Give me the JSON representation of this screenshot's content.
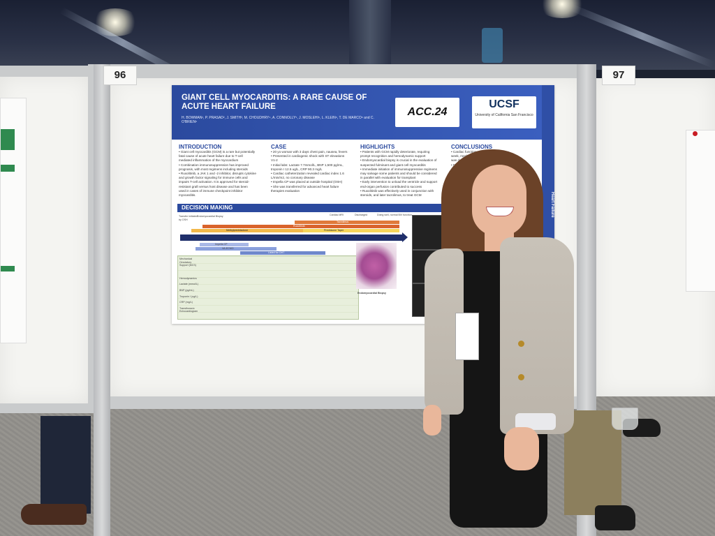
{
  "booths": [
    {
      "number": "96"
    },
    {
      "number": "97"
    }
  ],
  "poster": {
    "title": "GIANT CELL MYOCARDITIS: A RARE CAUSE OF ACUTE HEART FAILURE",
    "authors": "H. BOWMAN¹, P. PRASAD², J. SMITH³, M. CHOUDHRY⁴, A. CONNOLLY⁵, J. MOSLEHI⁶, L. KLEIN⁶, T. DE MARCO⁶ and C. O'BRIEN⁶",
    "acc_logo": "ACC.24",
    "ucsf_logo": "UCSF",
    "ucsf_sub": "University of California San Francisco",
    "side_banner": "Heart Failure",
    "sections": {
      "introduction": {
        "heading": "INTRODUCTION",
        "lines": [
          "• Giant cell myocarditis (GCM) is a rare but potentially",
          "fatal cause of acute heart failure due to T-cell",
          "mediated inflammation of the myocardium",
          "• Combination immunosuppression has improved",
          "prognosis, with most regimens including steroids",
          "• Ruxolitinib, a JAK 1 and -2 inhibitor, disrupts cytokine",
          "and growth factor signaling for immune cells and",
          "impairs T-cell activation. It is approved for steroid-",
          "resistant graft versus host disease and has been",
          "used in cases of immune checkpoint inhibitor",
          "myocarditis."
        ]
      },
      "case": {
        "heading": "CASE",
        "lines": [
          "• 20 yo woman with 3 days chest pain, nausea, fevers",
          "• Presented in cardiogenic shock with ST elevations",
          "V1-2",
          "• Initial labs: Lactate 7.7mmol/L, BNP 1,500 pg/mL,",
          "troponin I 12.5 ug/L, CRP 90.3 mg/L",
          "• Cardiac catheterization revealed cardiac index 1.6",
          "L/min/m2, no coronary disease",
          "• Impella CP was placed at outside hospital (OSH)",
          "• She was transferred for advanced heart failure",
          "therapies evaluation"
        ]
      },
      "highlights": {
        "heading": "HIGHLIGHTS",
        "lines": [
          "• Patients with GCM rapidly deteriorate, requiring",
          "prompt recognition and hemodynamic support",
          "• Endomyocardial biopsy is crucial in the evaluation of",
          "suspected fulminant and giant cell myocarditis",
          "• Immediate initiation of immunosuppressive regimens",
          "may salvage some patients and should be considered",
          "in parallel with evaluation for transplant",
          "• Early intervention to unload the ventricle and support",
          "end-organ perfusion contributed to success",
          "• Ruxolitinib was effectively used in conjunction with",
          "steroids, and later tacrolimus, to treat GCM"
        ]
      },
      "conclusions": {
        "heading": "CONCLUSIONS",
        "lines": [
          "• Cardiac function and bi",
          "week, mechanical cir",
          "was de-listed",
          "• Discharged",
          "prophylactic",
          "• Five mont",
          "exercisi",
          "• Ongoin",
          "for GCM",
          "Ruxoli"
        ]
      }
    },
    "decision_making": {
      "heading": "DECISION MAKING",
      "bars": [
        {
          "label": "Methylprednisolone"
        },
        {
          "label": "Prednisone Taper"
        },
        {
          "label": "Ruxolitinib"
        },
        {
          "label": "Tacrolimus"
        },
        {
          "label": "Impella CP"
        },
        {
          "label": "VA-ECMO"
        },
        {
          "label": "Listed for OHT"
        }
      ],
      "top_labels": [
        "Cardiac MRI",
        "Discharged",
        "Doing well, normal BiV function",
        "Endomyocardial Biopsy",
        "Transfer initiated by OSH"
      ],
      "days": [
        "Day 0",
        "Day 1",
        "Day 2",
        "Day 3",
        "Day 4",
        "Day 5",
        "Day 6",
        "Day 7",
        "Day 8",
        "Day 9",
        "Day 10",
        "Day 11",
        "Day 12",
        "Day 13",
        "//",
        "Day 19",
        "//",
        "Month 2",
        "//",
        "Month 5"
      ],
      "row_labels": [
        "Mechanical Circulatory Support (MCS)",
        "Hemodynamics",
        "Lactate (mmol/L)",
        "BNP (pg/mL)",
        "Troponin I (ug/L)",
        "CRP (mg/L)",
        "Transthoracic Echocardiogram"
      ],
      "biopsy_caption": "Endomyocardial Biopsy"
    }
  },
  "colors": {
    "poster_header": "#2b4a9e",
    "board": "#f4f4f1",
    "hair": "#6b4228",
    "blazer": "#c8c2b8"
  }
}
